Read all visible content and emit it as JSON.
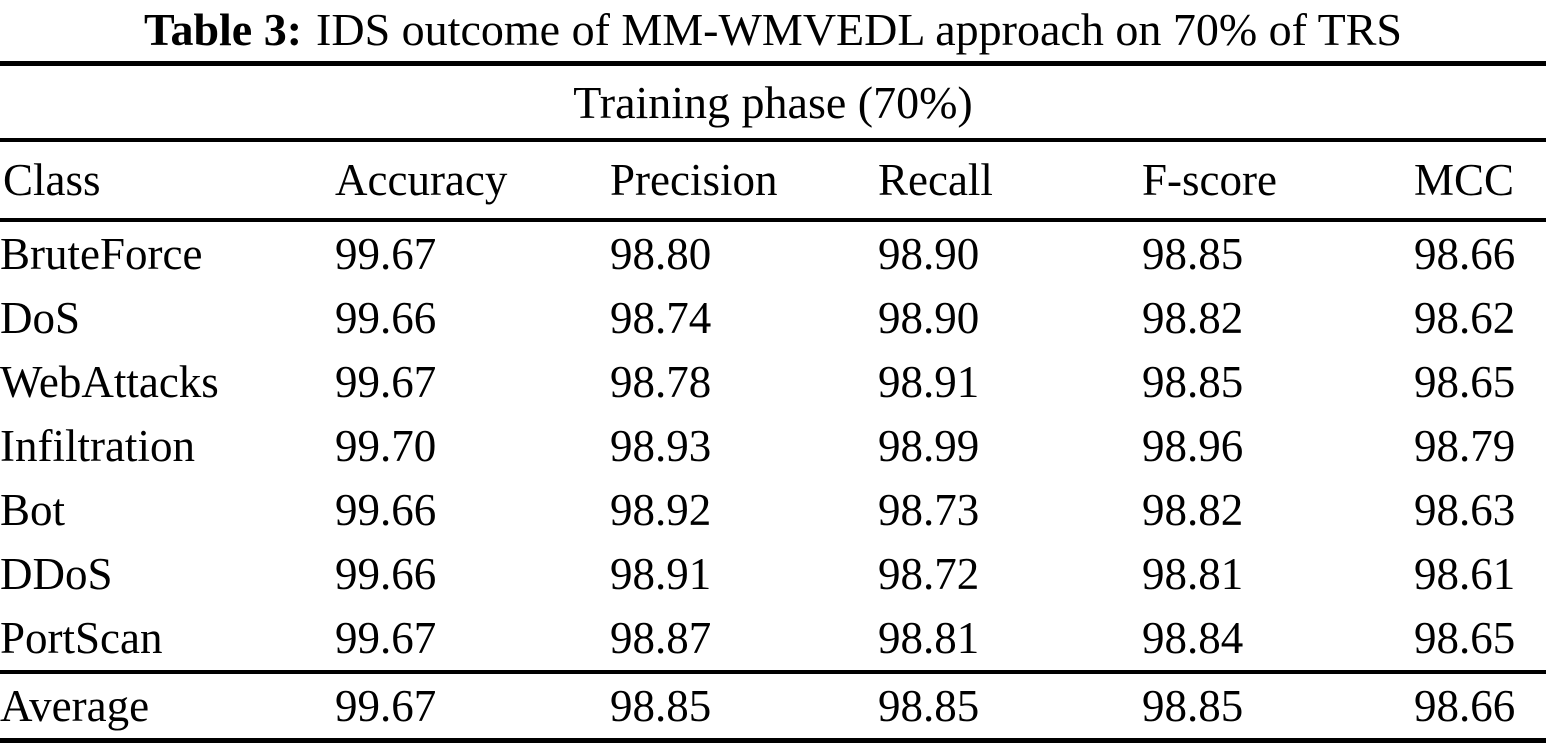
{
  "caption": {
    "label": "Table 3:",
    "text": "IDS outcome of MM-WMVEDL approach on 70% of TRS"
  },
  "table": {
    "group_header": "Training phase (70%)",
    "columns": [
      "Class",
      "Accuracy",
      "Precision",
      "Recall",
      "F-score",
      "MCC"
    ],
    "rows": [
      {
        "label": "BruteForce",
        "values": [
          "99.67",
          "98.80",
          "98.90",
          "98.85",
          "98.66"
        ]
      },
      {
        "label": "DoS",
        "values": [
          "99.66",
          "98.74",
          "98.90",
          "98.82",
          "98.62"
        ]
      },
      {
        "label": "WebAttacks",
        "values": [
          "99.67",
          "98.78",
          "98.91",
          "98.85",
          "98.65"
        ]
      },
      {
        "label": "Infiltration",
        "values": [
          "99.70",
          "98.93",
          "98.99",
          "98.96",
          "98.79"
        ]
      },
      {
        "label": "Bot",
        "values": [
          "99.66",
          "98.92",
          "98.73",
          "98.82",
          "98.63"
        ]
      },
      {
        "label": "DDoS",
        "values": [
          "99.66",
          "98.91",
          "98.72",
          "98.81",
          "98.61"
        ]
      },
      {
        "label": "PortScan",
        "values": [
          "99.67",
          "98.87",
          "98.81",
          "98.84",
          "98.65"
        ]
      }
    ],
    "average": {
      "label": "Average",
      "values": [
        "99.67",
        "98.85",
        "98.85",
        "98.85",
        "98.66"
      ]
    }
  },
  "chart_data": {
    "type": "table",
    "title": "Table 3: IDS outcome of MM-WMVEDL approach on 70% of TRS",
    "group_header": "Training phase (70%)",
    "columns": [
      "Class",
      "Accuracy",
      "Precision",
      "Recall",
      "F-score",
      "MCC"
    ],
    "rows": [
      [
        "BruteForce",
        99.67,
        98.8,
        98.9,
        98.85,
        98.66
      ],
      [
        "DoS",
        99.66,
        98.74,
        98.9,
        98.82,
        98.62
      ],
      [
        "WebAttacks",
        99.67,
        98.78,
        98.91,
        98.85,
        98.65
      ],
      [
        "Infiltration",
        99.7,
        98.93,
        98.99,
        98.96,
        98.79
      ],
      [
        "Bot",
        99.66,
        98.92,
        98.73,
        98.82,
        98.63
      ],
      [
        "DDoS",
        99.66,
        98.91,
        98.72,
        98.81,
        98.61
      ],
      [
        "PortScan",
        99.67,
        98.87,
        98.81,
        98.84,
        98.65
      ],
      [
        "Average",
        99.67,
        98.85,
        98.85,
        98.85,
        98.66
      ]
    ],
    "colors": {
      "text": "#000000",
      "background": "#ffffff",
      "rule": "#000000"
    }
  }
}
